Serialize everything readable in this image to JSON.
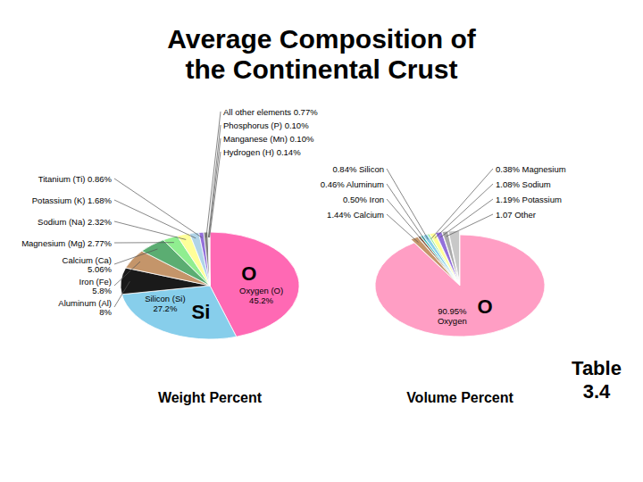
{
  "title": "Average Composition of\nthe Continental Crust",
  "annotations": [
    "Table\n3.4"
  ],
  "chart_data": [
    {
      "type": "pie",
      "xlabel": "Weight Percent",
      "values": [
        45.2,
        27.2,
        8.0,
        5.8,
        5.06,
        2.77,
        2.32,
        1.68,
        0.86,
        0.77,
        0.1,
        0.1,
        0.14
      ],
      "value_labels": [
        "Oxygen (O)\n45.2%",
        "Silicon (Si)\n27.2%",
        "Aluminum (Al)\n8%",
        "Iron (Fe)\n5.8%",
        "Calcium (Ca)\n5.06%",
        "Magnesium (Mg) 2.77%",
        "Sodium (Na) 2.32%",
        "Potassium (K) 1.68%",
        "Titanium (Ti) 0.86%",
        "All other elements 0.77%",
        "Phosphorus (P) 0.10%",
        "Manganese (Mn) 0.10%",
        "Hydrogen (H) 0.14%"
      ],
      "colors": [
        "#FF69B4",
        "#87CEEB",
        "#1a1a1a",
        "#C4956A",
        "#5BAD72",
        "#90EE90",
        "#FFFF99",
        "#B0D4E8",
        "#9370DB",
        "#808080",
        "#32CD32",
        "#228B22",
        "#D3D3D3"
      ],
      "annotations": [
        "O",
        "Si"
      ]
    },
    {
      "type": "pie",
      "xlabel": "Volume Percent",
      "values": [
        90.95,
        1.44,
        0.5,
        0.46,
        0.84,
        0.38,
        1.08,
        1.19,
        1.07,
        2.09
      ],
      "value_labels": [
        "90.95%\nOxygen",
        "1.44% Calcium",
        "0.50% Iron",
        "0.46% Aluminum",
        "0.84% Silicon",
        "0.38% Magnesium",
        "1.08% Sodium",
        "1.19% Potassium",
        "1.07 Other",
        null
      ],
      "colors": [
        "#FF9EC4",
        "#C4956A",
        "#8B6045",
        "#40C0C0",
        "#87CEEB",
        "#90EE90",
        "#FFFF99",
        "#9370DB",
        "#A9A9A9",
        "#C8C8C8"
      ],
      "annotations": [
        "O"
      ]
    }
  ]
}
